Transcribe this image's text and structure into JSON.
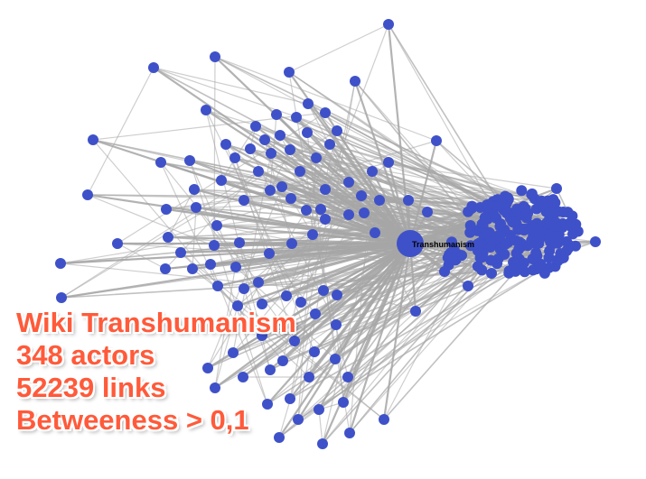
{
  "graph": {
    "hub_label": "Transhumanism",
    "node_color": "#3f51c8",
    "edge_color": "#a6a6a6",
    "label_color": "#000000"
  },
  "caption": {
    "title": "Wiki Transhumanism",
    "actors": "348 actors",
    "links": "52239 links",
    "filter": "Betweeness > 0,1"
  }
}
